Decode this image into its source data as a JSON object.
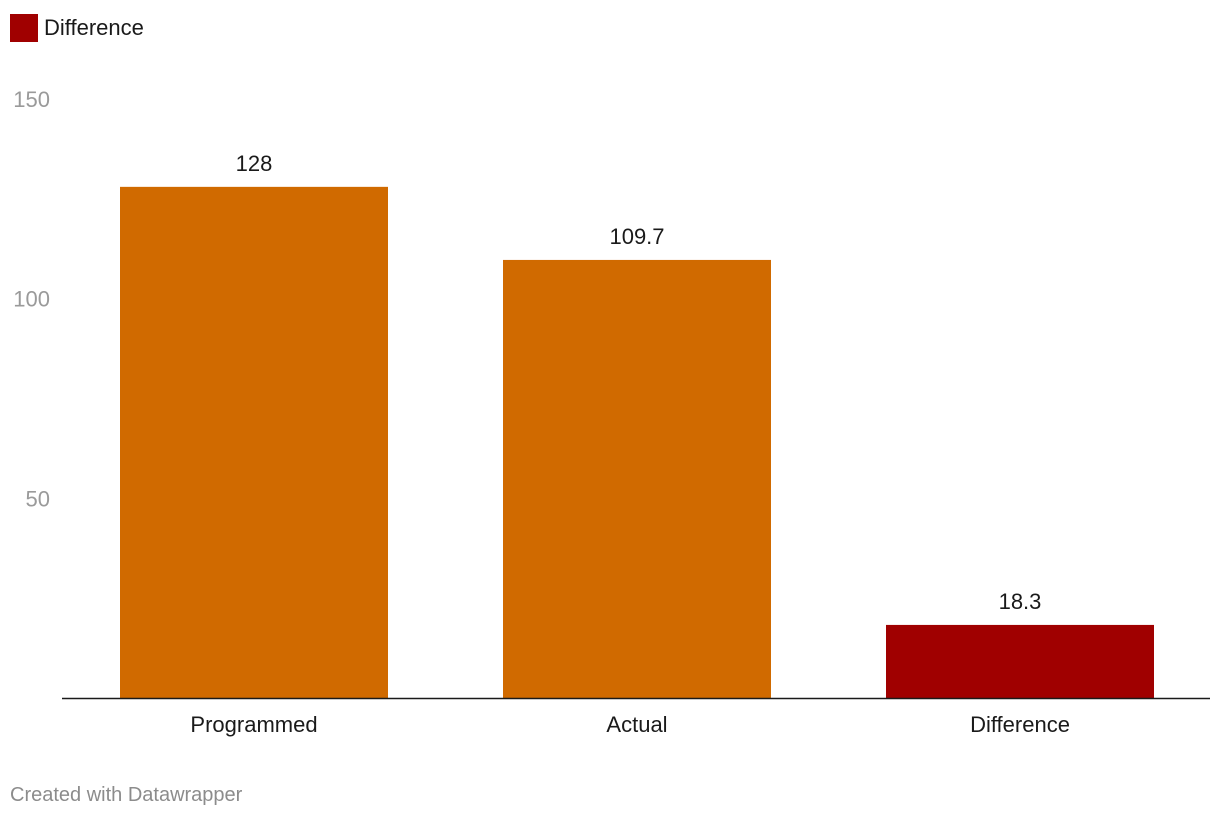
{
  "chart_data": {
    "type": "bar",
    "categories": [
      "Programmed",
      "Actual",
      "Difference"
    ],
    "values": [
      128,
      109.7,
      18.3
    ],
    "value_labels": [
      "128",
      "109.7",
      "18.3"
    ],
    "ylim": [
      0,
      150
    ],
    "yticks": [
      50,
      100,
      150
    ],
    "grid": false,
    "legend": {
      "position": "top-left",
      "entries": [
        {
          "name": "Difference",
          "color": "#a00000"
        }
      ]
    },
    "colors": [
      "#d06a00",
      "#d06a00",
      "#a00000"
    ]
  },
  "footer": {
    "credit": "Created with Datawrapper"
  }
}
